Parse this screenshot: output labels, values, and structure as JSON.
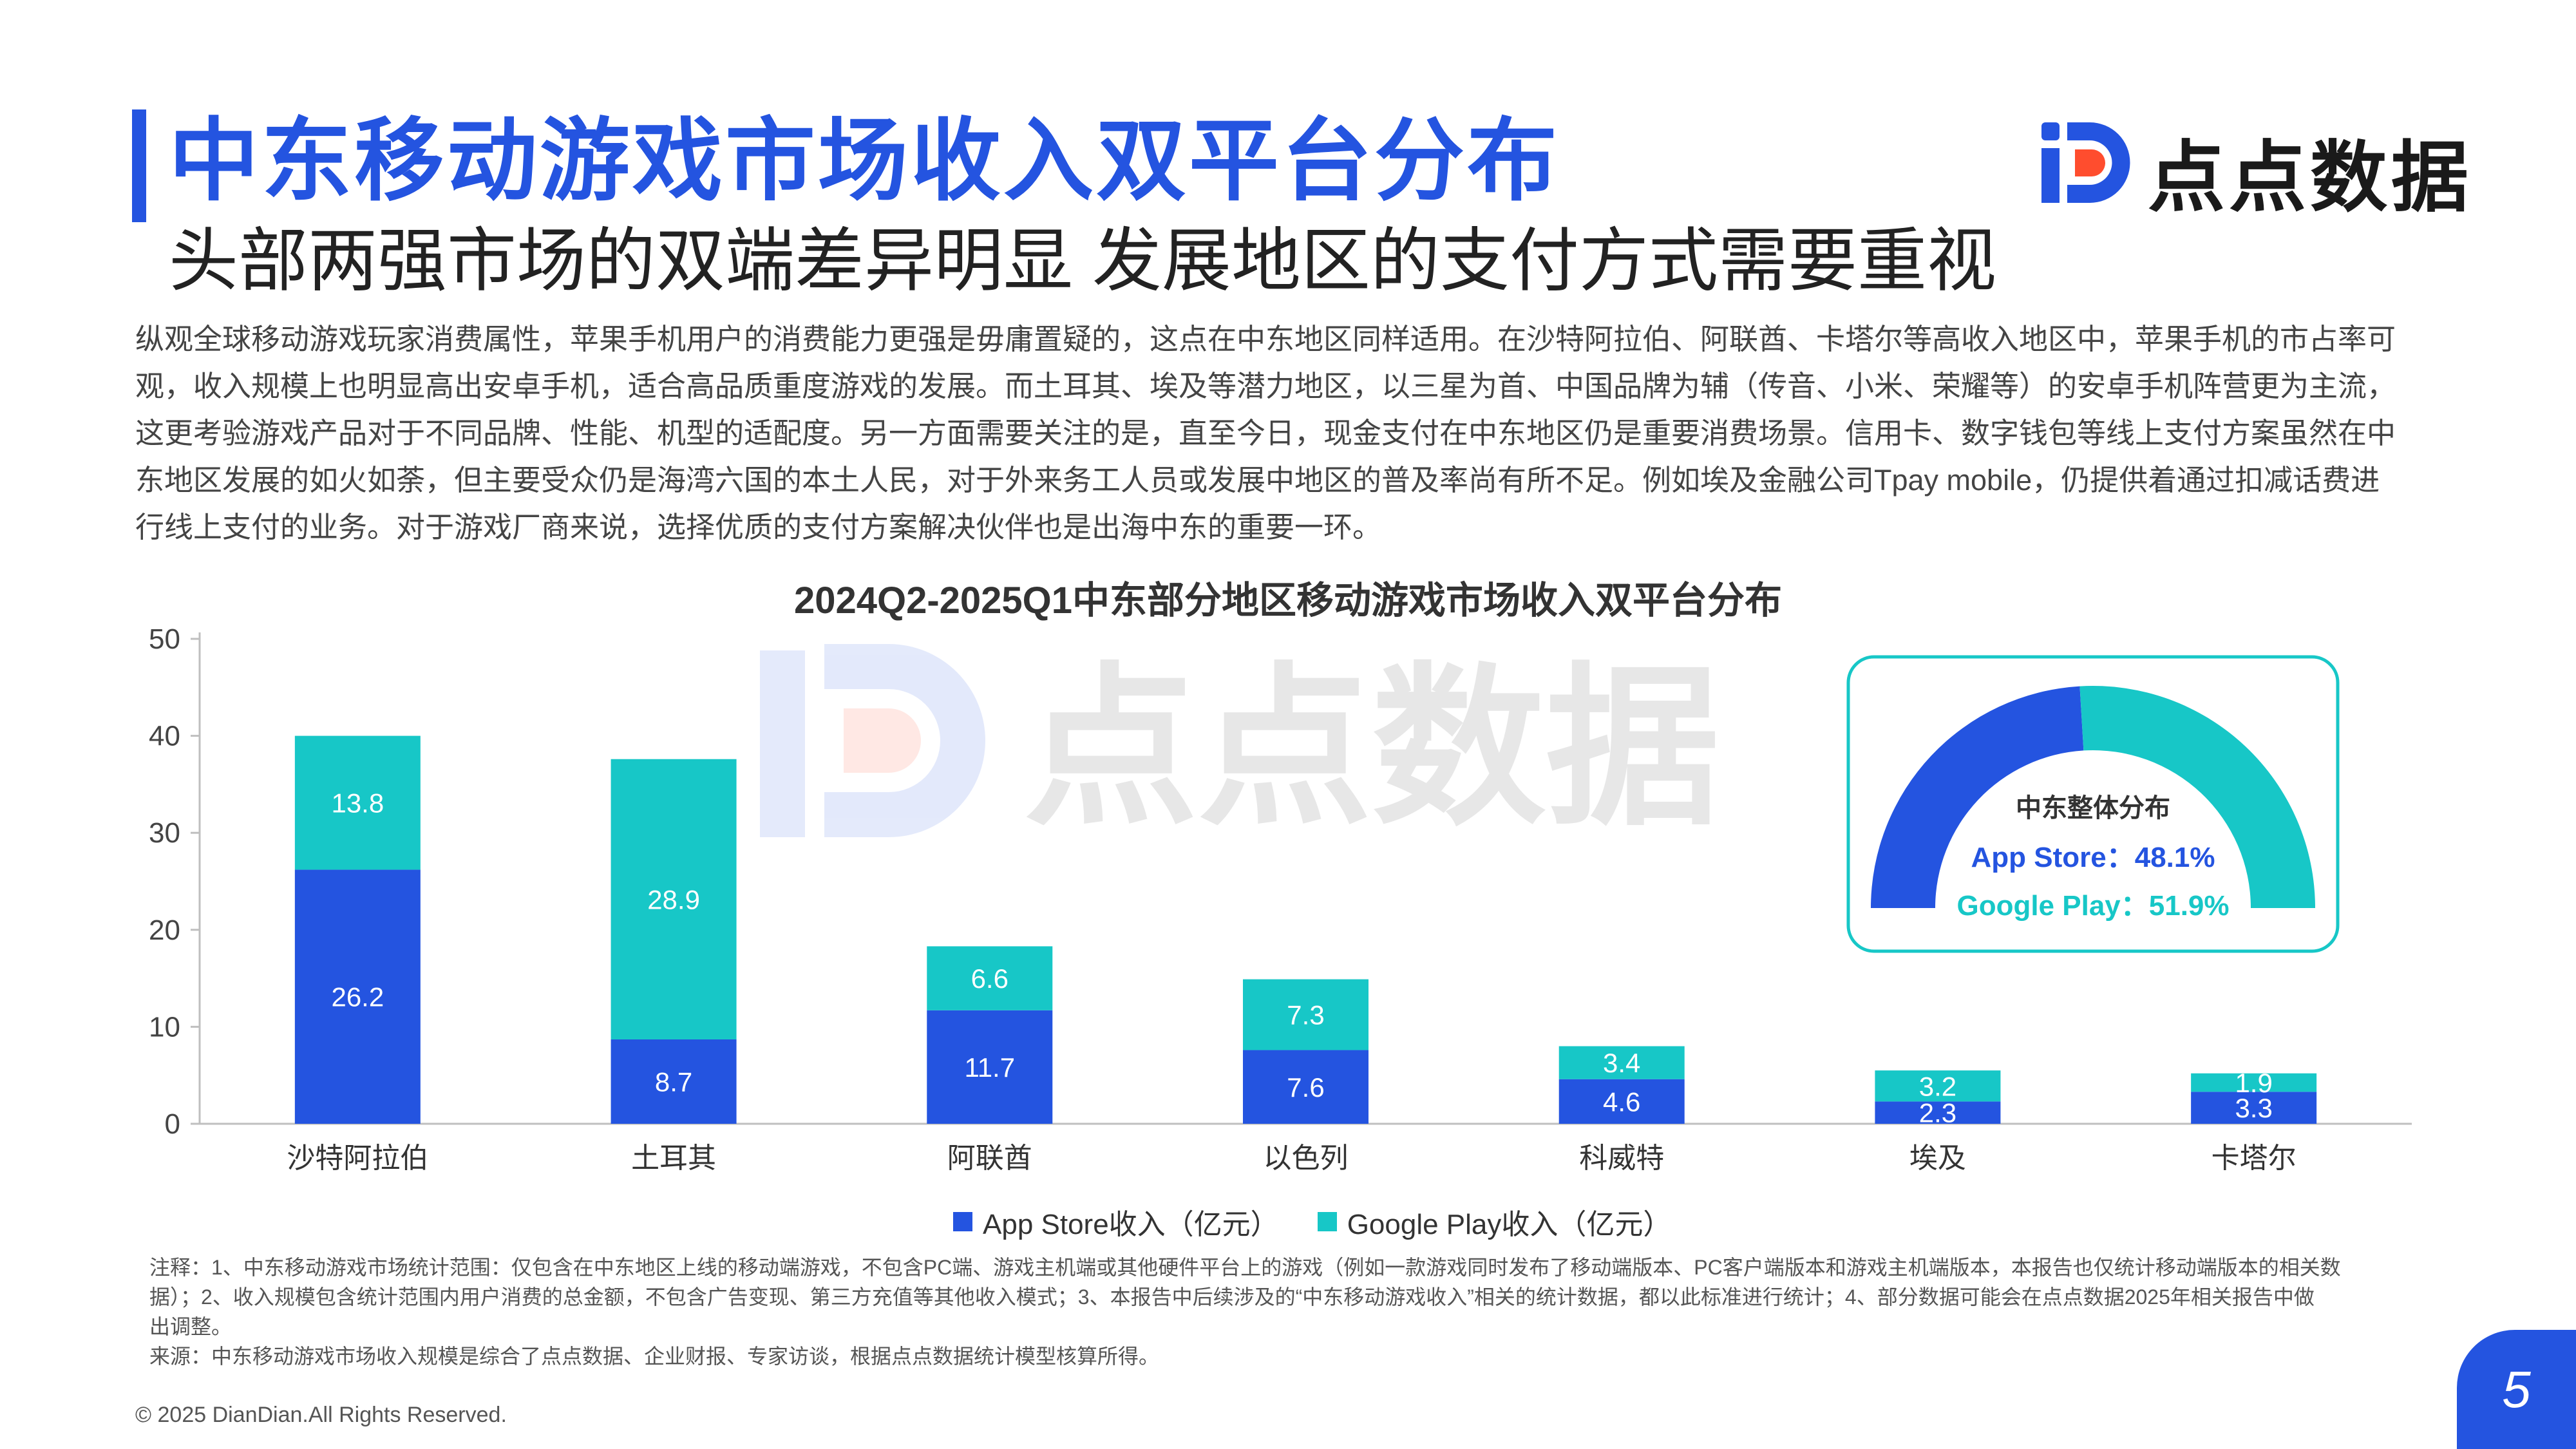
{
  "header": {
    "title": "中东移动游戏市场收入双平台分布",
    "subtitle": "头部两强市场的双端差异明显 发展地区的支付方式需要重视",
    "brand": "点点数据"
  },
  "intro": [
    "纵观全球移动游戏玩家消费属性，苹果手机用户的消费能力更强是毋庸置疑的，这点在中东地区同样适用。在沙特阿拉伯、阿联酋、卡塔尔等高收入地区中，苹果手机的市占率可",
    "观，收入规模上也明显高出安卓手机，适合高品质重度游戏的发展。而土耳其、埃及等潜力地区，以三星为首、中国品牌为辅（传音、小米、荣耀等）的安卓手机阵营更为主流，",
    "这更考验游戏产品对于不同品牌、性能、机型的适配度。另一方面需要关注的是，直至今日，现金支付在中东地区仍是重要消费场景。信用卡、数字钱包等线上支付方案虽然在中",
    "东地区发展的如火如荼，但主要受众仍是海湾六国的本土人民，对于外来务工人员或发展中地区的普及率尚有所不足。例如埃及金融公司Tpay mobile，仍提供着通过扣减话费进",
    "行线上支付的业务。对于游戏厂商来说，选择优质的支付方案解决伙伴也是出海中东的重要一环。"
  ],
  "chart_data": {
    "type": "bar",
    "stacked": true,
    "title": "2024Q2-2025Q1中东部分地区移动游戏市场收入双平台分布",
    "categories": [
      "沙特阿拉伯",
      "土耳其",
      "阿联酋",
      "以色列",
      "科威特",
      "埃及",
      "卡塔尔"
    ],
    "series": [
      {
        "name": "App Store收入（亿元）",
        "values": [
          26.2,
          8.7,
          11.7,
          7.6,
          4.6,
          2.3,
          3.3
        ],
        "color": "#2454e0"
      },
      {
        "name": "Google Play收入（亿元）",
        "values": [
          13.8,
          28.9,
          6.6,
          7.3,
          3.4,
          3.2,
          1.9
        ],
        "color": "#17c7c7"
      }
    ],
    "ylim": [
      0,
      50
    ],
    "yticks": [
      0,
      10,
      20,
      30,
      40,
      50
    ],
    "legend": "bottom-center",
    "grid": false
  },
  "inset": {
    "type": "pie",
    "title": "中东整体分布",
    "slices": [
      {
        "label": "App Store：48.1%",
        "value": 48.1,
        "color": "#2454e0"
      },
      {
        "label": "Google Play：51.9%",
        "value": 51.9,
        "color": "#17c7c7"
      }
    ]
  },
  "notes": [
    "注释：1、中东移动游戏市场统计范围：仅包含在中东地区上线的移动端游戏，不包含PC端、游戏主机端或其他硬件平台上的游戏（例如一款游戏同时发布了移动端版本、PC客户端版本和游戏主机端版本，本报告也仅统计移动端版本的相关数",
    "据）；2、收入规模包含统计范围内用户消费的总金额，不包含广告变现、第三方充值等其他收入模式；3、本报告中后续涉及的“中东移动游戏收入”相关的统计数据，都以此标准进行统计；4、部分数据可能会在点点数据2025年相关报告中做",
    "出调整。",
    "来源：中东移动游戏市场收入规模是综合了点点数据、企业财报、专家访谈，根据点点数据统计模型核算所得。"
  ],
  "footer": {
    "copyright": "© 2025 DianDian.All Rights Reserved.",
    "page": "5"
  },
  "colors": {
    "primary": "#2454e0",
    "secondary": "#17c7c7"
  }
}
